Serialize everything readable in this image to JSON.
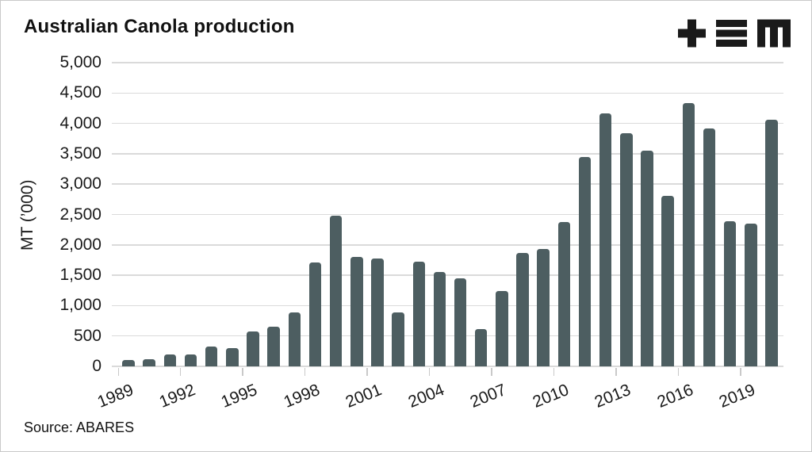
{
  "header": {
    "title": "Australian Canola production",
    "logo": {
      "name": "tem-logo",
      "color": "#1a1a1a"
    }
  },
  "chart_data": {
    "type": "bar",
    "title": "Australian Canola production",
    "xlabel": "",
    "ylabel": "MT (’000)",
    "categories": [
      1989,
      1990,
      1991,
      1992,
      1993,
      1994,
      1995,
      1996,
      1997,
      1998,
      1999,
      2000,
      2001,
      2002,
      2003,
      2004,
      2005,
      2006,
      2007,
      2008,
      2009,
      2010,
      2011,
      2012,
      2013,
      2014,
      2015,
      2016,
      2017,
      2018,
      2019,
      2020
    ],
    "values": [
      100,
      115,
      200,
      200,
      330,
      295,
      575,
      650,
      890,
      1710,
      2475,
      1800,
      1780,
      890,
      1725,
      1560,
      1445,
      610,
      1240,
      1870,
      1935,
      2380,
      3445,
      4165,
      3840,
      3555,
      2805,
      4330,
      3910,
      2390,
      2350,
      4065
    ],
    "ylim": [
      0,
      5000
    ],
    "y_tick_step": 500,
    "y_ticks": [
      "0",
      "500",
      "1,000",
      "1,500",
      "2,000",
      "2,500",
      "3,000",
      "3,500",
      "4,000",
      "4,500",
      "5,000"
    ],
    "x_ticks": [
      "1989",
      "1992",
      "1995",
      "1998",
      "2001",
      "2004",
      "2007",
      "2010",
      "2013",
      "2016",
      "2019"
    ],
    "grid": "horizontal",
    "legend": "none",
    "bar_color": "#4d5e61"
  },
  "footer": {
    "source": "Source: ABARES"
  },
  "colors": {
    "bar": "#4d5e61",
    "grid": "#dadada",
    "tick": "#c9c9c9",
    "text": "#1a1a1a",
    "border": "#c9c9c9"
  }
}
